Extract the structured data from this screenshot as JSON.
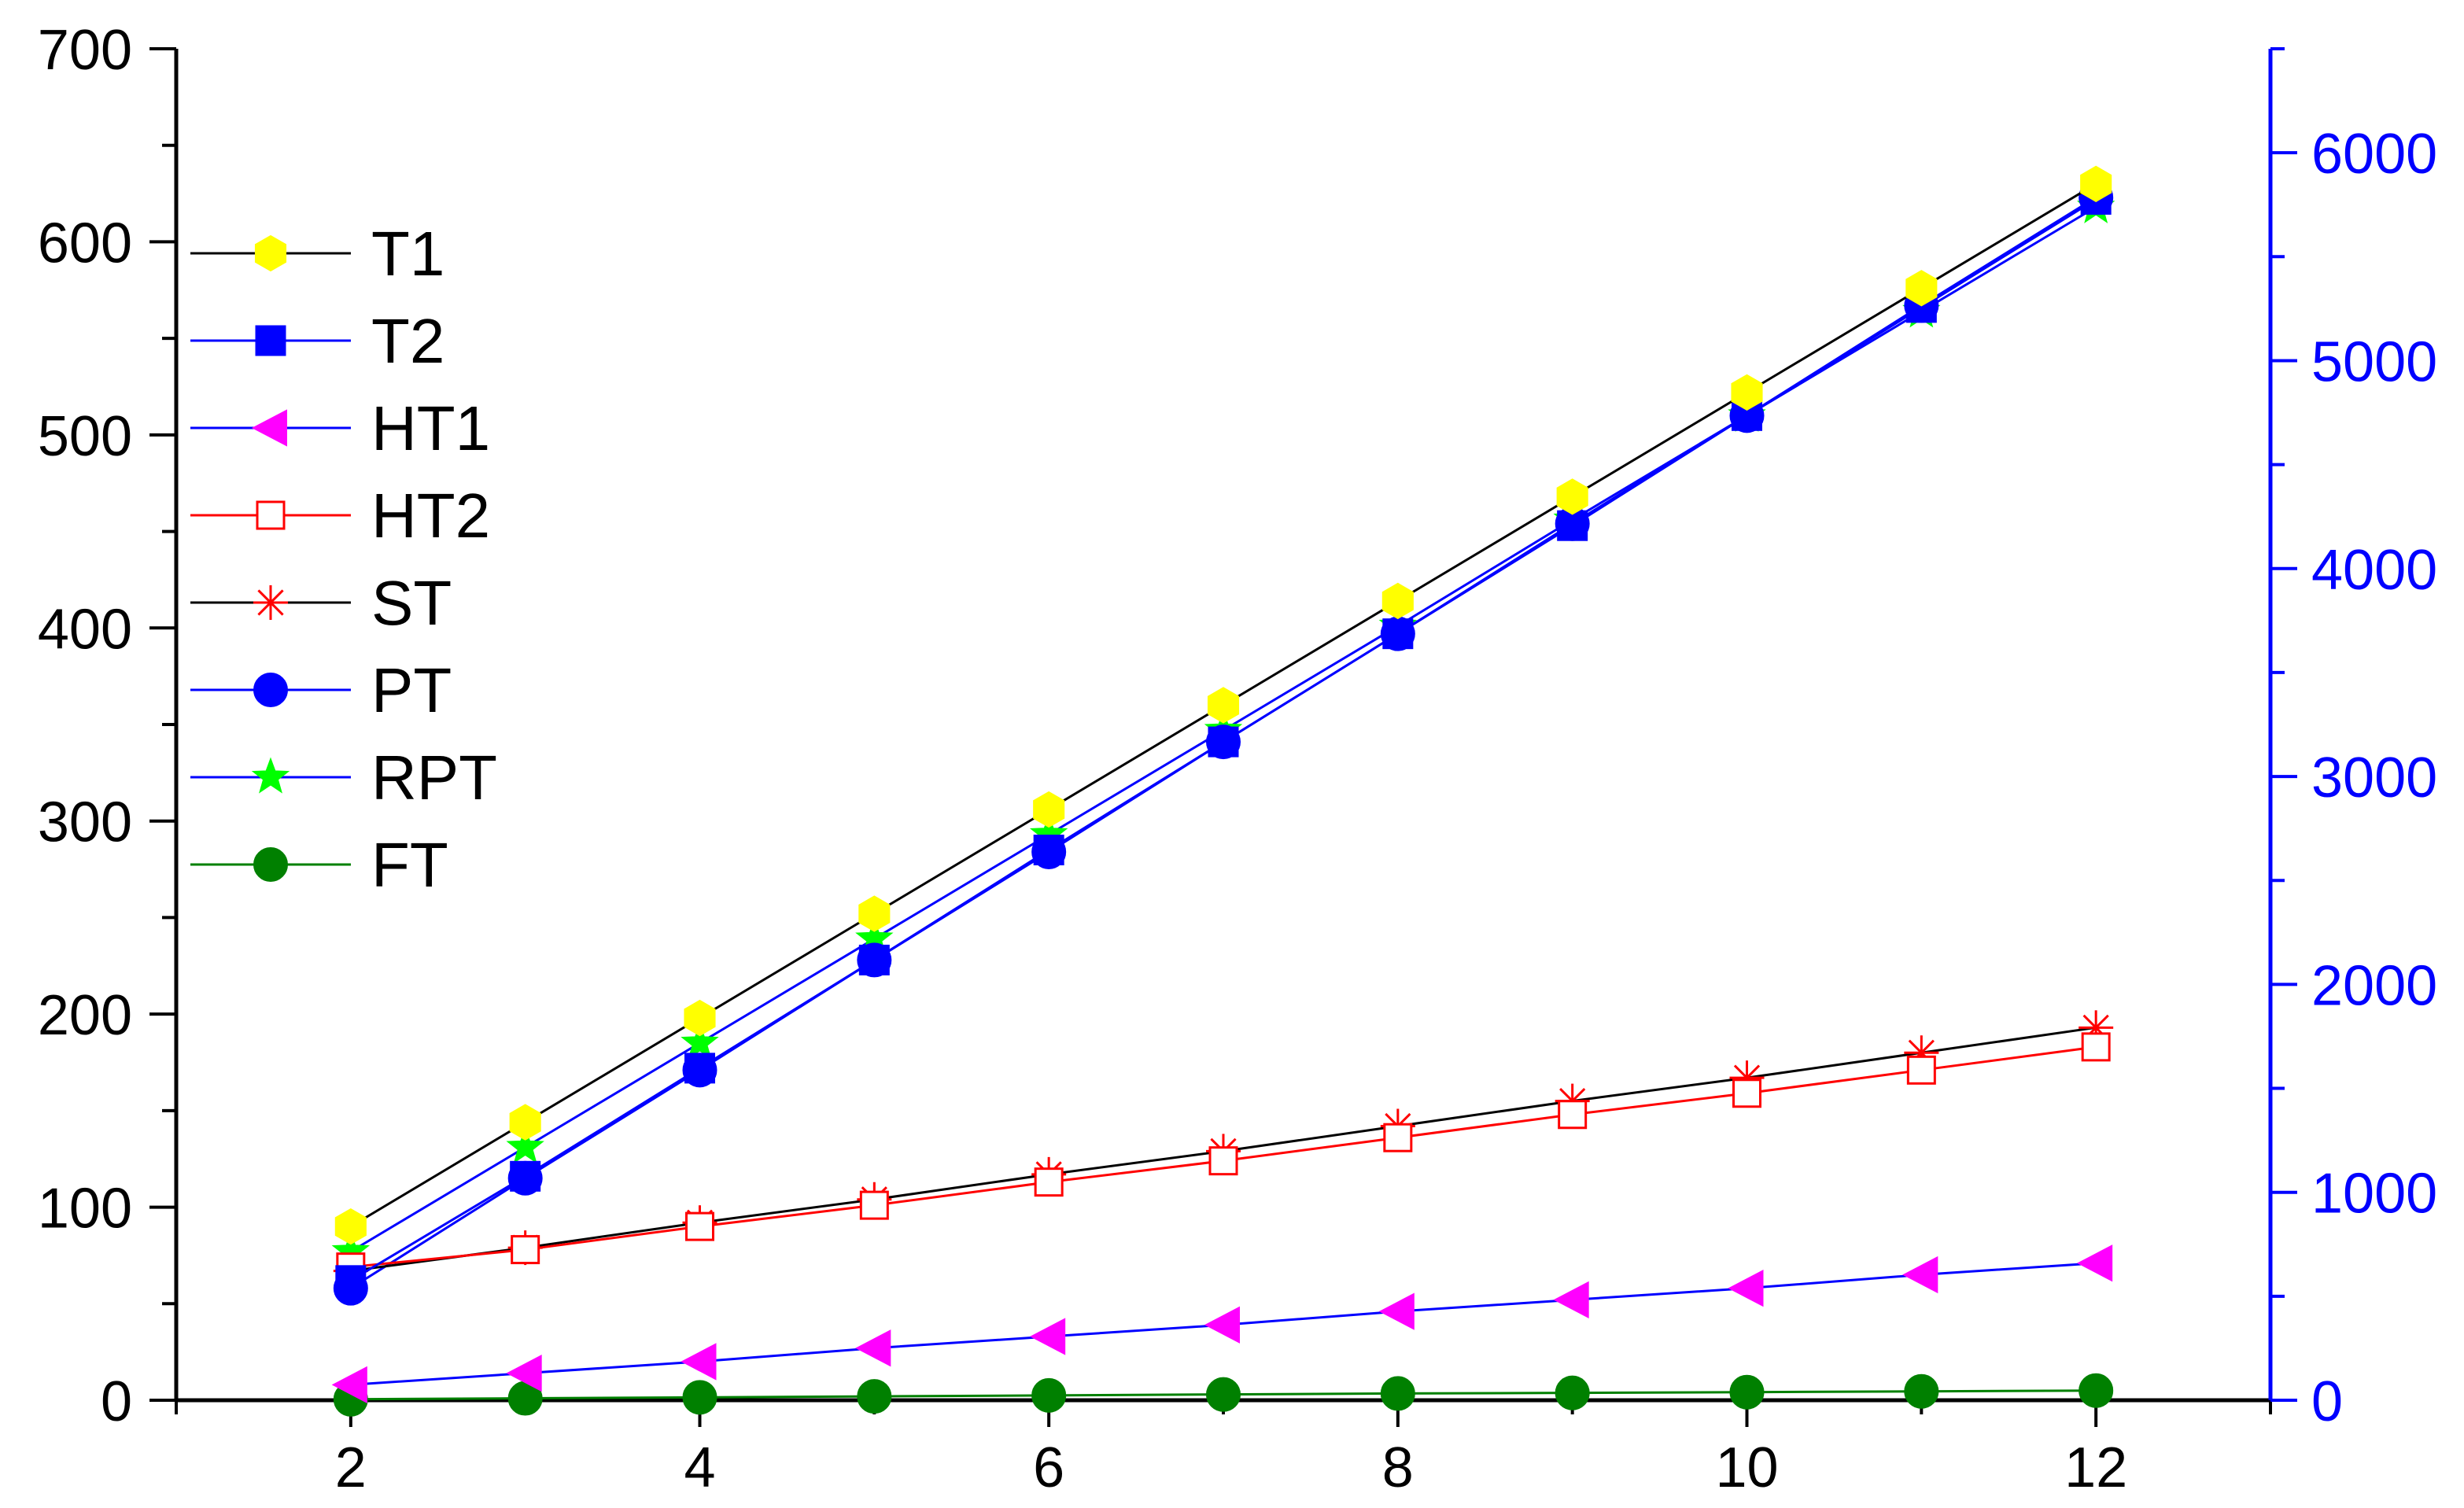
{
  "chart_data": {
    "type": "line",
    "title": "",
    "xlabel": "",
    "ylabel": "",
    "y2label": "",
    "xlim": [
      1,
      13
    ],
    "ylim": [
      0,
      700
    ],
    "y2lim": [
      0,
      6500
    ],
    "x_ticks": [
      2,
      4,
      6,
      8,
      10,
      12
    ],
    "y_ticks": [
      0,
      100,
      200,
      300,
      400,
      500,
      600,
      700
    ],
    "y2_ticks": [
      0,
      1000,
      2000,
      3000,
      4000,
      5000,
      6000
    ],
    "x_tick_labels": [
      "2",
      "4",
      "6",
      "8",
      "10",
      "12"
    ],
    "y_tick_labels": [
      "0",
      "100",
      "200",
      "300",
      "400",
      "500",
      "600",
      "700"
    ],
    "y2_tick_labels": [
      "0",
      "1000",
      "2000",
      "3000",
      "4000",
      "5000",
      "6000"
    ],
    "axis_colors": {
      "left": "#000000",
      "right": "#0000ff"
    },
    "legend_position": "upper-left",
    "grid": false,
    "x": [
      2,
      3,
      4,
      5,
      6,
      7,
      8,
      9,
      10,
      11,
      12
    ],
    "series": [
      {
        "name": "T1",
        "axis": "left",
        "values": [
          90,
          144,
          198,
          252,
          306,
          360,
          414,
          468,
          522,
          576,
          630
        ],
        "line_color": "#000000",
        "marker": "hexagon",
        "marker_fill": "#ffff00",
        "marker_stroke": "#ffff00"
      },
      {
        "name": "T2",
        "axis": "left",
        "values": [
          62,
          116,
          172,
          228,
          285,
          341,
          397,
          453,
          510,
          566,
          622
        ],
        "line_color": "#0000ff",
        "marker": "square",
        "marker_fill": "#0000ff",
        "marker_stroke": "#0000ff"
      },
      {
        "name": "HT1",
        "axis": "left",
        "values": [
          8,
          14,
          20,
          27,
          33,
          39,
          46,
          52,
          58,
          65,
          71
        ],
        "line_color": "#0000ff",
        "marker": "triangle-left",
        "marker_fill": "#ff00ff",
        "marker_stroke": "#ff00ff"
      },
      {
        "name": "HT2",
        "axis": "left",
        "values": [
          69,
          78,
          90,
          101,
          113,
          124,
          136,
          148,
          159,
          171,
          183
        ],
        "line_color": "#ff0000",
        "marker": "open-square",
        "marker_fill": "none",
        "marker_stroke": "#ff0000"
      },
      {
        "name": "ST",
        "axis": "left",
        "values": [
          67,
          79,
          92,
          104,
          117,
          129,
          142,
          155,
          167,
          180,
          193
        ],
        "line_color": "#000000",
        "marker": "asterisk",
        "marker_fill": "none",
        "marker_stroke": "#ff0000"
      },
      {
        "name": "PT",
        "axis": "left",
        "values": [
          58,
          115,
          171,
          228,
          284,
          341,
          397,
          454,
          510,
          567,
          623
        ],
        "line_color": "#0000ff",
        "marker": "circle",
        "marker_fill": "#0000ff",
        "marker_stroke": "#0000ff"
      },
      {
        "name": "RPT",
        "axis": "left",
        "values": [
          77,
          131,
          185,
          239,
          293,
          347,
          401,
          456,
          510,
          564,
          618
        ],
        "line_color": "#0000ff",
        "marker": "star",
        "marker_fill": "#00ff00",
        "marker_stroke": "#00ff00"
      },
      {
        "name": "FT",
        "axis": "left",
        "values": [
          0.5,
          1,
          1.5,
          2,
          2.5,
          3,
          3.5,
          3.8,
          4.2,
          4.6,
          5
        ],
        "line_color": "#008000",
        "marker": "circle",
        "marker_fill": "#008000",
        "marker_stroke": "#008000"
      }
    ]
  }
}
